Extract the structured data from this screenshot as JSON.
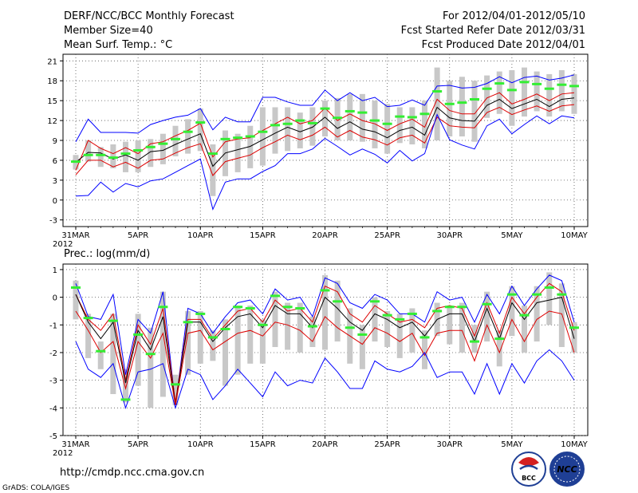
{
  "header": {
    "title": "DERF/NCC/BCC Monthly Forecast",
    "member_size": "Member Size=40",
    "variable": "Mean Surf. Temp.: °C",
    "period": "For 2012/04/01-2012/05/10",
    "started": "Fcst Started Refer Date 2012/03/31",
    "produced": "Fcst Produced Date 2012/04/01"
  },
  "footer": {
    "url": "http://cmdp.ncc.cma.gov.cn",
    "credit": "GrADS: COLA/IGES",
    "logo_bcc": "BCC",
    "logo_ncc": "NCC"
  },
  "colors": {
    "ensemble_min_max": "#0000ff",
    "spread": "#dd0000",
    "mean": "#000000",
    "member_range": "#c8c8c8",
    "climatology": "#33ee33"
  },
  "chart_data": [
    {
      "type": "line",
      "title": "Mean Surf. Temp.: °C",
      "x_start": "2012-03-31",
      "x_ticks": [
        "31MAR\n2012",
        "5APR",
        "10APR",
        "15APR",
        "20APR",
        "25APR",
        "30APR",
        "5MAY",
        "10MAY"
      ],
      "ylim": [
        -4,
        22
      ],
      "yticks": [
        -3,
        0,
        3,
        6,
        9,
        12,
        15,
        18,
        21
      ],
      "grid": true,
      "series": [
        {
          "name": "max",
          "values": [
            8.8,
            12.2,
            10.2,
            10.2,
            10.2,
            10.1,
            11.4,
            12.0,
            12.5,
            12.8,
            13.8,
            10.6,
            12.5,
            11.8,
            11.8,
            15.5,
            15.5,
            14.8,
            14.3,
            14.3,
            16.6,
            15.0,
            16.2,
            15.0,
            15.5,
            14.1,
            14.3,
            15.1,
            14.3,
            17.2,
            17.3,
            16.9,
            17.0,
            17.6,
            18.6,
            17.7,
            18.5,
            18.7,
            18.1,
            18.4,
            18.9
          ]
        },
        {
          "name": "upper",
          "values": [
            4.5,
            9.0,
            7.8,
            7.0,
            7.9,
            7.0,
            8.5,
            8.8,
            9.7,
            10.5,
            11.6,
            6.5,
            8.8,
            9.2,
            9.4,
            10.5,
            11.5,
            12.5,
            11.5,
            12.0,
            13.9,
            12.0,
            13.0,
            12.0,
            11.5,
            10.5,
            11.5,
            12.2,
            11.0,
            15.2,
            13.5,
            13.0,
            13.0,
            15.4,
            16.2,
            14.5,
            15.2,
            16.0,
            15.0,
            16.0,
            16.2
          ]
        },
        {
          "name": "mean",
          "values": [
            5.7,
            7.2,
            7.1,
            6.2,
            6.8,
            6.0,
            7.3,
            7.5,
            8.4,
            9.2,
            10.0,
            5.1,
            7.1,
            7.6,
            8.1,
            9.1,
            10.1,
            11.0,
            10.3,
            11.0,
            12.5,
            10.8,
            11.8,
            10.7,
            10.3,
            9.4,
            10.5,
            11.0,
            9.8,
            14.0,
            12.4,
            12.0,
            11.9,
            14.3,
            15.2,
            13.8,
            14.5,
            15.2,
            14.1,
            15.2,
            15.4
          ]
        },
        {
          "name": "lower",
          "values": [
            3.8,
            6.0,
            6.0,
            5.0,
            5.7,
            4.8,
            6.0,
            6.2,
            7.1,
            7.9,
            8.5,
            3.7,
            5.8,
            6.3,
            6.8,
            7.9,
            8.8,
            9.8,
            9.1,
            9.8,
            11.0,
            9.5,
            10.5,
            9.5,
            9.1,
            8.3,
            9.4,
            9.8,
            8.6,
            12.5,
            11.2,
            11.0,
            10.9,
            13.2,
            14.0,
            12.9,
            13.6,
            14.2,
            13.4,
            14.2,
            14.4
          ]
        },
        {
          "name": "min",
          "values": [
            0.6,
            0.7,
            2.7,
            1.2,
            2.5,
            2.0,
            2.9,
            3.2,
            4.2,
            5.2,
            6.2,
            -1.4,
            2.7,
            3.2,
            3.2,
            4.3,
            5.2,
            7.0,
            7.0,
            7.7,
            9.3,
            8.1,
            6.8,
            7.7,
            6.9,
            5.6,
            7.5,
            5.9,
            7.0,
            12.9,
            9.1,
            8.3,
            7.7,
            11.2,
            12.2,
            10.0,
            11.4,
            12.7,
            11.5,
            12.7,
            12.4
          ]
        }
      ],
      "range_bars": [
        [
          4.6,
          6.8
        ],
        [
          5.8,
          9.0
        ],
        [
          5.0,
          8.0
        ],
        [
          4.8,
          8.4
        ],
        [
          4.2,
          8.8
        ],
        [
          4.2,
          9.0
        ],
        [
          5.0,
          9.2
        ],
        [
          5.4,
          10.0
        ],
        [
          6.6,
          11.2
        ],
        [
          7.0,
          12.2
        ],
        [
          7.4,
          13.8
        ],
        [
          0.6,
          8.4
        ],
        [
          3.6,
          10.5
        ],
        [
          4.2,
          10.0
        ],
        [
          4.8,
          11.2
        ],
        [
          5.2,
          14.0
        ],
        [
          7.0,
          14.0
        ],
        [
          7.4,
          14.0
        ],
        [
          7.8,
          13.2
        ],
        [
          8.2,
          14.0
        ],
        [
          9.6,
          15.0
        ],
        [
          9.0,
          15.4
        ],
        [
          9.0,
          16.0
        ],
        [
          8.8,
          16.0
        ],
        [
          7.8,
          15.0
        ],
        [
          7.0,
          14.5
        ],
        [
          8.6,
          14.0
        ],
        [
          8.4,
          14.0
        ],
        [
          7.8,
          15.0
        ],
        [
          9.0,
          20.0
        ],
        [
          9.6,
          18.0
        ],
        [
          9.6,
          18.6
        ],
        [
          8.8,
          18.0
        ],
        [
          12.4,
          18.8
        ],
        [
          13.0,
          19.4
        ],
        [
          11.2,
          19.6
        ],
        [
          12.6,
          20.0
        ],
        [
          13.4,
          19.4
        ],
        [
          12.6,
          19.0
        ],
        [
          13.4,
          19.6
        ],
        [
          13.0,
          19.0
        ]
      ],
      "climatology": [
        5.8,
        6.8,
        6.8,
        6.4,
        7.0,
        7.5,
        8.0,
        8.5,
        9.2,
        10.3,
        11.7,
        7.0,
        9.2,
        9.4,
        9.6,
        10.3,
        11.3,
        11.5,
        12.0,
        11.6,
        13.8,
        12.4,
        13.4,
        13.2,
        12.0,
        11.5,
        12.6,
        12.5,
        13.0,
        16.4,
        14.5,
        14.7,
        15.2,
        16.8,
        17.6,
        16.6,
        17.8,
        17.5,
        16.8,
        17.4,
        17.2
      ]
    },
    {
      "type": "line",
      "title": "Prec.: log(mm/d)",
      "x_start": "2012-03-31",
      "x_ticks": [
        "31MAR\n2012",
        "5APR",
        "10APR",
        "15APR",
        "20APR",
        "25APR",
        "30APR",
        "5MAY",
        "10MAY"
      ],
      "ylim": [
        -5,
        1.2
      ],
      "yticks": [
        -5,
        -4,
        -3,
        -2,
        -1,
        0,
        1
      ],
      "grid": true,
      "series": [
        {
          "name": "max",
          "values": [
            0.5,
            -0.7,
            -0.8,
            0.1,
            -2.8,
            -0.8,
            -1.3,
            0.2,
            -3.9,
            -0.4,
            -0.6,
            -1.3,
            -0.7,
            -0.2,
            -0.1,
            -0.6,
            0.3,
            -0.1,
            0.0,
            -0.7,
            0.7,
            0.5,
            -0.2,
            -0.4,
            0.1,
            -0.1,
            -0.6,
            -0.6,
            -0.9,
            0.2,
            -0.1,
            0.0,
            -0.9,
            0.1,
            -0.6,
            0.4,
            -0.3,
            0.3,
            0.8,
            0.6,
            -0.9
          ]
        },
        {
          "name": "upper",
          "values": [
            0.1,
            -0.8,
            -1.2,
            -0.6,
            -3.0,
            -1.0,
            -1.7,
            -0.4,
            -3.8,
            -0.8,
            -0.8,
            -1.5,
            -1.0,
            -0.5,
            -0.4,
            -0.9,
            -0.1,
            -0.5,
            -0.4,
            -0.9,
            0.4,
            0.2,
            -0.6,
            -0.9,
            -0.3,
            -0.6,
            -0.9,
            -0.8,
            -1.1,
            -0.4,
            -0.3,
            -0.4,
            -1.4,
            -0.2,
            -1.3,
            0.0,
            -0.6,
            0.0,
            0.5,
            0.2,
            -1.2
          ]
        },
        {
          "name": "mean",
          "values": [
            0.1,
            -0.9,
            -1.5,
            -0.9,
            -3.1,
            -1.2,
            -1.9,
            -0.7,
            -3.9,
            -0.9,
            -0.9,
            -1.6,
            -1.1,
            -0.7,
            -0.6,
            -1.1,
            -0.3,
            -0.6,
            -0.6,
            -1.1,
            0.0,
            -0.4,
            -0.9,
            -1.2,
            -0.6,
            -0.8,
            -1.1,
            -0.9,
            -1.4,
            -0.8,
            -0.6,
            -0.6,
            -1.6,
            -0.4,
            -1.5,
            -0.2,
            -0.8,
            -0.2,
            -0.1,
            0.0,
            -1.5
          ]
        },
        {
          "name": "lower",
          "values": [
            -0.5,
            -1.2,
            -2.0,
            -1.6,
            -3.3,
            -1.6,
            -2.2,
            -1.3,
            -3.9,
            -1.3,
            -1.2,
            -1.9,
            -1.6,
            -1.3,
            -1.2,
            -1.4,
            -0.9,
            -1.0,
            -1.2,
            -1.6,
            -0.7,
            -1.1,
            -1.4,
            -1.7,
            -1.1,
            -1.3,
            -1.6,
            -1.3,
            -2.1,
            -1.3,
            -1.2,
            -1.2,
            -2.3,
            -1.0,
            -2.0,
            -0.8,
            -1.6,
            -0.8,
            -0.5,
            -0.6,
            -2.0
          ]
        },
        {
          "name": "min",
          "values": [
            -1.6,
            -2.6,
            -2.9,
            -2.4,
            -4.0,
            -2.7,
            -2.6,
            -2.4,
            -4.0,
            -2.6,
            -2.8,
            -3.7,
            -3.2,
            -2.6,
            -3.1,
            -3.6,
            -2.7,
            -3.2,
            -3.0,
            -3.1,
            -2.2,
            -2.7,
            -3.3,
            -3.3,
            -2.3,
            -2.6,
            -2.7,
            -2.5,
            -2.0,
            -2.9,
            -2.7,
            -2.7,
            -3.5,
            -2.4,
            -3.5,
            -2.4,
            -3.1,
            -2.3,
            -1.9,
            -2.3,
            -3.0
          ]
        }
      ],
      "range_bars": [
        [
          -0.8,
          0.6
        ],
        [
          -2.2,
          -0.6
        ],
        [
          -2.6,
          -1.6
        ],
        [
          -3.5,
          -0.6
        ],
        [
          -3.8,
          -2.6
        ],
        [
          -3.2,
          -0.6
        ],
        [
          -4.0,
          -1.1
        ],
        [
          -3.6,
          0.2
        ],
        [
          -3.9,
          -2.8
        ],
        [
          -2.8,
          -0.5
        ],
        [
          -2.4,
          -0.5
        ],
        [
          -2.3,
          -1.2
        ],
        [
          -3.2,
          -0.8
        ],
        [
          -2.8,
          -0.3
        ],
        [
          -2.4,
          -0.3
        ],
        [
          -2.4,
          -0.8
        ],
        [
          -1.8,
          0.2
        ],
        [
          -1.9,
          -0.2
        ],
        [
          -2.0,
          -0.2
        ],
        [
          -1.8,
          -0.7
        ],
        [
          -1.9,
          0.8
        ],
        [
          -1.6,
          0.6
        ],
        [
          -2.4,
          -0.4
        ],
        [
          -2.6,
          -1.0
        ],
        [
          -1.6,
          0.0
        ],
        [
          -1.8,
          -0.5
        ],
        [
          -2.2,
          -0.6
        ],
        [
          -2.0,
          -0.4
        ],
        [
          -2.6,
          -1.2
        ],
        [
          -1.4,
          -0.2
        ],
        [
          -1.7,
          -0.3
        ],
        [
          -2.0,
          -0.2
        ],
        [
          -2.0,
          -1.0
        ],
        [
          -1.6,
          0.2
        ],
        [
          -2.5,
          -1.2
        ],
        [
          -1.4,
          0.4
        ],
        [
          -2.0,
          -0.3
        ],
        [
          -1.6,
          0.4
        ],
        [
          -1.0,
          0.9
        ],
        [
          -1.8,
          0.5
        ],
        [
          -2.0,
          -0.9
        ]
      ],
      "climatology": [
        0.35,
        -0.75,
        -1.95,
        -0.85,
        -3.7,
        -1.35,
        -2.05,
        -0.35,
        -3.15,
        -0.9,
        -0.6,
        -1.45,
        -1.15,
        -0.35,
        -0.4,
        -1.0,
        0.05,
        -0.35,
        -0.4,
        -1.05,
        0.25,
        -0.15,
        -1.1,
        -1.35,
        -0.15,
        -0.65,
        -0.8,
        -0.6,
        -1.45,
        -0.5,
        -0.35,
        -0.35,
        -1.6,
        -0.25,
        -1.5,
        0.1,
        -0.65,
        0.1,
        0.35,
        0.1,
        -1.1
      ]
    }
  ]
}
